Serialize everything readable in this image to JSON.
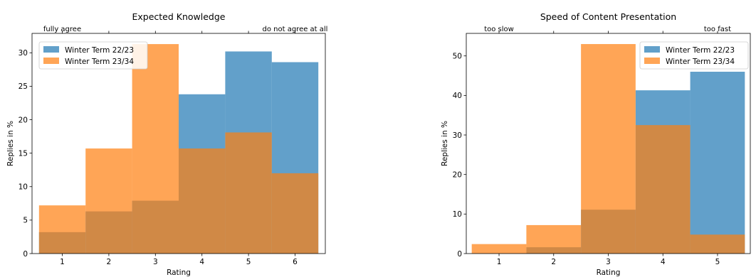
{
  "chart_data": [
    {
      "type": "bar",
      "title": "Expected Knowledge",
      "xlabel": "Rating",
      "ylabel": "Replies in %",
      "top_left_label": "fully agree",
      "top_right_label": "do not agree at all",
      "categories": [
        "1",
        "2",
        "3",
        "4",
        "5",
        "6"
      ],
      "x": [
        1,
        2,
        3,
        4,
        5,
        6
      ],
      "xlim": [
        0.35,
        6.65
      ],
      "ylim": [
        0,
        32.9
      ],
      "yticks": [
        0,
        5,
        10,
        15,
        20,
        25,
        30
      ],
      "grid": false,
      "legend_position": "top-left",
      "series": [
        {
          "name": "Winter Term 22/23",
          "color": "#1f77b4",
          "opacity": 0.7,
          "values": [
            3.2,
            6.3,
            7.9,
            23.8,
            30.2,
            28.6
          ]
        },
        {
          "name": "Winter Term 23/34",
          "color": "#ff7f0e",
          "opacity": 0.7,
          "values": [
            7.2,
            15.7,
            31.3,
            15.7,
            18.1,
            12.0
          ]
        }
      ]
    },
    {
      "type": "bar",
      "title": "Speed of Content Presentation",
      "xlabel": "Rating",
      "ylabel": "Replies in %",
      "top_left_label": "too slow",
      "top_right_label": "too fast",
      "categories": [
        "1",
        "2",
        "3",
        "4",
        "5"
      ],
      "x": [
        1,
        2,
        3,
        4,
        5
      ],
      "xlim": [
        0.4,
        5.6
      ],
      "ylim": [
        0,
        55.7
      ],
      "yticks": [
        0,
        10,
        20,
        30,
        40,
        50
      ],
      "grid": false,
      "legend_position": "top-right",
      "series": [
        {
          "name": "Winter Term 22/23",
          "color": "#1f77b4",
          "opacity": 0.7,
          "values": [
            0,
            1.6,
            11.1,
            41.3,
            46.0
          ]
        },
        {
          "name": "Winter Term 23/34",
          "color": "#ff7f0e",
          "opacity": 0.7,
          "values": [
            2.4,
            7.2,
            53.0,
            32.5,
            4.8
          ]
        }
      ]
    }
  ]
}
